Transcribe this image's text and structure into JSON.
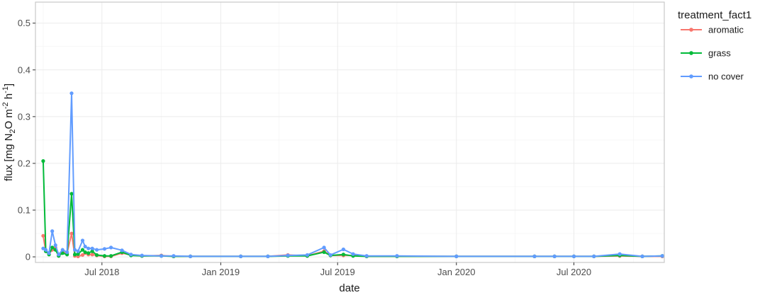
{
  "chart_data": {
    "type": "line",
    "title": "",
    "xlabel": "date",
    "ylabel": "flux [mg N2O m-2 h-1]",
    "x_range": [
      "2018-03-20",
      "2020-11-18"
    ],
    "ylim": [
      -0.012,
      0.545
    ],
    "grid": true,
    "legend_title": "treatment_fact1",
    "legend_position": "right",
    "x_ticks": [
      {
        "date": "2018-07-01",
        "label": "Jul 2018"
      },
      {
        "date": "2019-01-01",
        "label": "Jan 2019"
      },
      {
        "date": "2019-07-01",
        "label": "Jul 2019"
      },
      {
        "date": "2020-01-01",
        "label": "Jan 2020"
      },
      {
        "date": "2020-07-01",
        "label": "Jul 2020"
      }
    ],
    "y_ticks": [
      0.0,
      0.1,
      0.2,
      0.3,
      0.4,
      0.5
    ],
    "series": [
      {
        "name": "aromatic",
        "color": "#F8766D",
        "points": [
          [
            "2018-04-01",
            0.045
          ],
          [
            "2018-04-05",
            0.012
          ],
          [
            "2018-04-10",
            0.006
          ],
          [
            "2018-04-15",
            0.015
          ],
          [
            "2018-04-20",
            0.02
          ],
          [
            "2018-04-25",
            0.003
          ],
          [
            "2018-05-01",
            0.01
          ],
          [
            "2018-05-08",
            0.008
          ],
          [
            "2018-05-15",
            0.05
          ],
          [
            "2018-05-20",
            0.002
          ],
          [
            "2018-05-25",
            0.001
          ],
          [
            "2018-06-01",
            0.004
          ],
          [
            "2018-06-05",
            0.008
          ],
          [
            "2018-06-10",
            0.005
          ],
          [
            "2018-06-16",
            0.005
          ],
          [
            "2018-06-23",
            0.003
          ],
          [
            "2018-07-05",
            0.001
          ],
          [
            "2018-07-15",
            0.001
          ],
          [
            "2018-08-01",
            0.008
          ],
          [
            "2018-08-15",
            0.004
          ],
          [
            "2018-09-01",
            0.002
          ],
          [
            "2018-10-01",
            0.003
          ],
          [
            "2018-10-20",
            0.001
          ],
          [
            "2018-11-15",
            0.001
          ],
          [
            "2019-02-01",
            0.001
          ],
          [
            "2019-03-15",
            0.001
          ],
          [
            "2019-04-15",
            0.004
          ],
          [
            "2019-05-15",
            0.002
          ],
          [
            "2019-06-10",
            0.012
          ],
          [
            "2019-06-20",
            0.003
          ],
          [
            "2019-07-10",
            0.003
          ],
          [
            "2019-07-25",
            0.003
          ],
          [
            "2019-08-15",
            0.001
          ],
          [
            "2019-10-01",
            0.001
          ],
          [
            "2020-01-01",
            0.001
          ],
          [
            "2020-05-01",
            0.001
          ],
          [
            "2020-06-01",
            0.001
          ],
          [
            "2020-07-01",
            0.001
          ],
          [
            "2020-08-01",
            0.001
          ],
          [
            "2020-09-10",
            0.002
          ],
          [
            "2020-10-15",
            0.001
          ],
          [
            "2020-11-15",
            0.001
          ]
        ]
      },
      {
        "name": "grass",
        "color": "#00BA38",
        "points": [
          [
            "2018-04-01",
            0.205
          ],
          [
            "2018-04-05",
            0.012
          ],
          [
            "2018-04-10",
            0.005
          ],
          [
            "2018-04-15",
            0.02
          ],
          [
            "2018-04-20",
            0.015
          ],
          [
            "2018-04-25",
            0.002
          ],
          [
            "2018-05-01",
            0.008
          ],
          [
            "2018-05-08",
            0.005
          ],
          [
            "2018-05-15",
            0.135
          ],
          [
            "2018-05-20",
            0.005
          ],
          [
            "2018-05-25",
            0.006
          ],
          [
            "2018-06-01",
            0.015
          ],
          [
            "2018-06-05",
            0.01
          ],
          [
            "2018-06-10",
            0.008
          ],
          [
            "2018-06-16",
            0.012
          ],
          [
            "2018-06-23",
            0.004
          ],
          [
            "2018-07-05",
            0.002
          ],
          [
            "2018-07-15",
            0.002
          ],
          [
            "2018-08-01",
            0.01
          ],
          [
            "2018-08-15",
            0.003
          ],
          [
            "2018-09-01",
            0.002
          ],
          [
            "2018-10-01",
            0.002
          ],
          [
            "2018-10-20",
            0.001
          ],
          [
            "2018-11-15",
            0.001
          ],
          [
            "2019-02-01",
            0.001
          ],
          [
            "2019-03-15",
            0.001
          ],
          [
            "2019-04-15",
            0.002
          ],
          [
            "2019-05-15",
            0.002
          ],
          [
            "2019-06-10",
            0.01
          ],
          [
            "2019-06-20",
            0.003
          ],
          [
            "2019-07-10",
            0.005
          ],
          [
            "2019-07-25",
            0.002
          ],
          [
            "2019-08-15",
            0.001
          ],
          [
            "2019-10-01",
            0.001
          ],
          [
            "2020-01-01",
            0.001
          ],
          [
            "2020-05-01",
            0.001
          ],
          [
            "2020-06-01",
            0.001
          ],
          [
            "2020-07-01",
            0.001
          ],
          [
            "2020-08-01",
            0.001
          ],
          [
            "2020-09-10",
            0.003
          ],
          [
            "2020-10-15",
            0.001
          ],
          [
            "2020-11-15",
            0.002
          ]
        ]
      },
      {
        "name": "no cover",
        "color": "#619CFF",
        "points": [
          [
            "2018-04-01",
            0.018
          ],
          [
            "2018-04-05",
            0.015
          ],
          [
            "2018-04-10",
            0.008
          ],
          [
            "2018-04-15",
            0.055
          ],
          [
            "2018-04-20",
            0.025
          ],
          [
            "2018-04-25",
            0.005
          ],
          [
            "2018-05-01",
            0.015
          ],
          [
            "2018-05-08",
            0.01
          ],
          [
            "2018-05-15",
            0.35
          ],
          [
            "2018-05-20",
            0.015
          ],
          [
            "2018-05-25",
            0.012
          ],
          [
            "2018-06-01",
            0.035
          ],
          [
            "2018-06-05",
            0.022
          ],
          [
            "2018-06-10",
            0.018
          ],
          [
            "2018-06-16",
            0.018
          ],
          [
            "2018-06-23",
            0.015
          ],
          [
            "2018-07-05",
            0.017
          ],
          [
            "2018-07-15",
            0.02
          ],
          [
            "2018-08-01",
            0.014
          ],
          [
            "2018-08-15",
            0.005
          ],
          [
            "2018-09-01",
            0.003
          ],
          [
            "2018-10-01",
            0.002
          ],
          [
            "2018-10-20",
            0.002
          ],
          [
            "2018-11-15",
            0.001
          ],
          [
            "2019-02-01",
            0.001
          ],
          [
            "2019-03-15",
            0.001
          ],
          [
            "2019-04-15",
            0.003
          ],
          [
            "2019-05-15",
            0.004
          ],
          [
            "2019-06-10",
            0.02
          ],
          [
            "2019-06-20",
            0.004
          ],
          [
            "2019-07-10",
            0.016
          ],
          [
            "2019-07-25",
            0.006
          ],
          [
            "2019-08-15",
            0.002
          ],
          [
            "2019-10-01",
            0.002
          ],
          [
            "2020-01-01",
            0.001
          ],
          [
            "2020-05-01",
            0.001
          ],
          [
            "2020-06-01",
            0.001
          ],
          [
            "2020-07-01",
            0.001
          ],
          [
            "2020-08-01",
            0.001
          ],
          [
            "2020-09-10",
            0.006
          ],
          [
            "2020-10-15",
            0.001
          ],
          [
            "2020-11-15",
            0.002
          ]
        ]
      }
    ]
  }
}
